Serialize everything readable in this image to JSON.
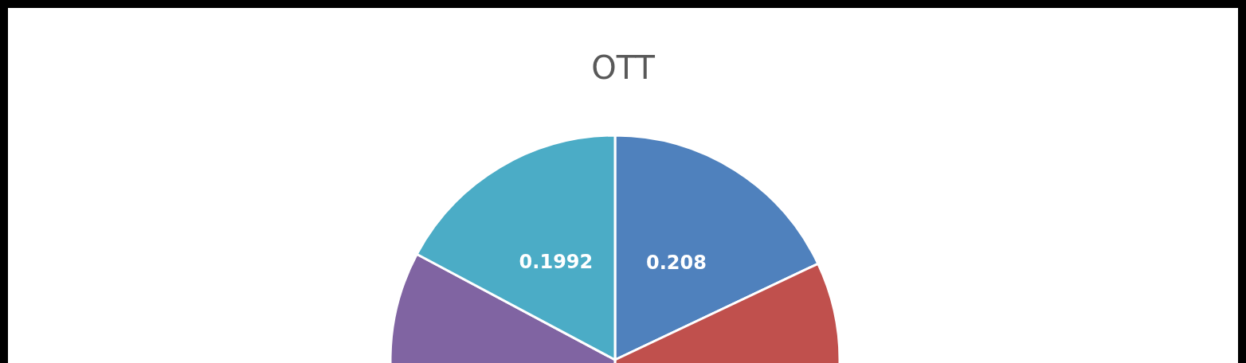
{
  "chart_data": {
    "type": "pie",
    "title": "OTT",
    "categories": [
      null,
      null,
      null,
      null
    ],
    "values": [
      0.208,
      0.375,
      0.376,
      0.1992
    ],
    "colors": [
      "#4f81bd",
      "#c0504d",
      "#8064a2",
      "#4bacc6"
    ],
    "value_labels": [
      "0.208",
      null,
      null,
      "0.1992"
    ]
  }
}
